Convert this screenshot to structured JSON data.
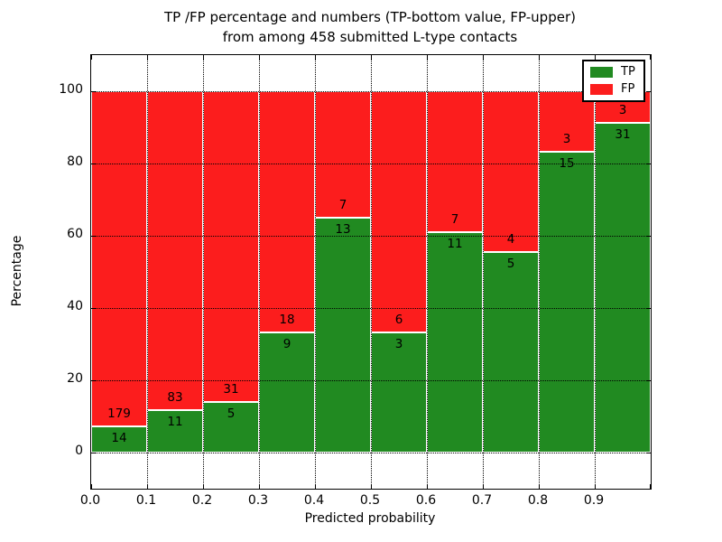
{
  "title": {
    "line1": "TP /FP percentage and numbers (TP-bottom value, FP-upper)",
    "line2": "from among 458 submitted L-type contacts"
  },
  "chart_data": {
    "type": "bar",
    "stacked": true,
    "normalized": "each bar stacked to 100%",
    "title": "TP /FP percentage and numbers (TP-bottom value, FP-upper)\nfrom among 458 submitted L-type contacts",
    "xlabel": "Predicted probability",
    "ylabel": "Percentage",
    "total_contacts": 458,
    "xlim": [
      0.0,
      1.0
    ],
    "ylim": [
      -10,
      110
    ],
    "bin_width": 0.1,
    "x_ticks": [
      0.0,
      0.1,
      0.2,
      0.3,
      0.4,
      0.5,
      0.6,
      0.7,
      0.8,
      0.9
    ],
    "x_tick_labels": [
      "0.0",
      "0.1",
      "0.2",
      "0.3",
      "0.4",
      "0.5",
      "0.6",
      "0.7",
      "0.8",
      "0.9"
    ],
    "y_ticks": [
      0,
      20,
      40,
      60,
      80,
      100
    ],
    "y_tick_labels": [
      "0",
      "20",
      "40",
      "60",
      "80",
      "100"
    ],
    "grid": "dotted, drawn above bars",
    "series": [
      {
        "name": "TP",
        "color": "#218a21",
        "counts": [
          14,
          11,
          5,
          9,
          13,
          3,
          11,
          5,
          15,
          31
        ]
      },
      {
        "name": "FP",
        "color": "#fc1d1d",
        "counts": [
          179,
          83,
          31,
          18,
          7,
          6,
          7,
          4,
          3,
          3
        ]
      }
    ],
    "tp_percent_of_bin": [
      7.25,
      11.7,
      13.89,
      33.33,
      65.0,
      33.33,
      61.11,
      55.56,
      83.33,
      91.18
    ],
    "legend": {
      "position": "upper right",
      "entries": [
        {
          "label": "TP",
          "color": "#218a21"
        },
        {
          "label": "FP",
          "color": "#fc1d1d"
        }
      ]
    }
  }
}
